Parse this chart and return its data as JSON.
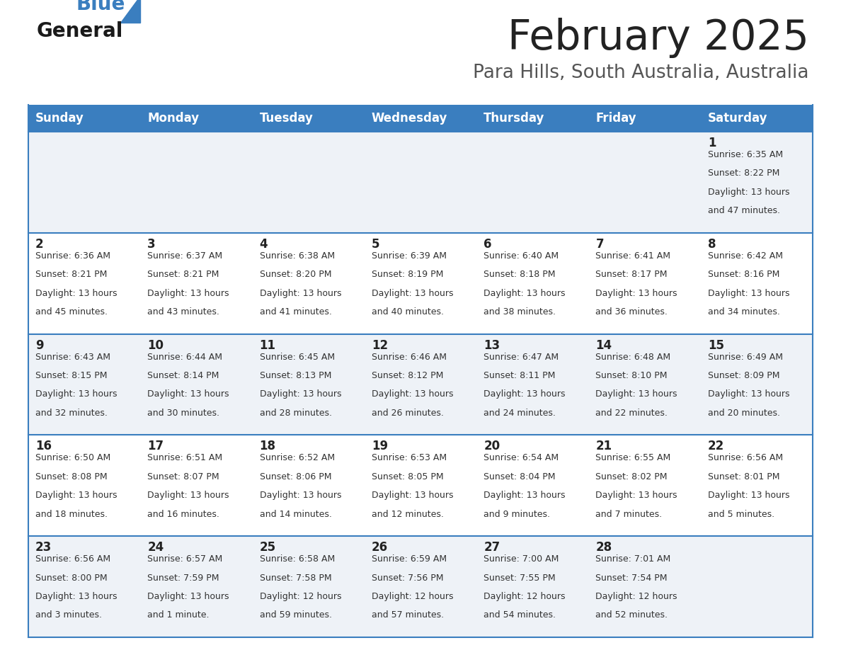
{
  "title": "February 2025",
  "subtitle": "Para Hills, South Australia, Australia",
  "days_of_week": [
    "Sunday",
    "Monday",
    "Tuesday",
    "Wednesday",
    "Thursday",
    "Friday",
    "Saturday"
  ],
  "header_bg": "#3a7ebf",
  "header_text": "#ffffff",
  "row_bg_odd": "#eef2f7",
  "row_bg_even": "#ffffff",
  "cell_border": "#3a7ebf",
  "day_num_color": "#222222",
  "info_color": "#333333",
  "title_color": "#222222",
  "subtitle_color": "#555555",
  "logo_general_color": "#1a1a1a",
  "logo_blue_color": "#3a7ebf",
  "calendar": [
    [
      {
        "day": null,
        "sunrise": null,
        "sunset": null,
        "daylight": null
      },
      {
        "day": null,
        "sunrise": null,
        "sunset": null,
        "daylight": null
      },
      {
        "day": null,
        "sunrise": null,
        "sunset": null,
        "daylight": null
      },
      {
        "day": null,
        "sunrise": null,
        "sunset": null,
        "daylight": null
      },
      {
        "day": null,
        "sunrise": null,
        "sunset": null,
        "daylight": null
      },
      {
        "day": null,
        "sunrise": null,
        "sunset": null,
        "daylight": null
      },
      {
        "day": 1,
        "sunrise": "6:35 AM",
        "sunset": "8:22 PM",
        "daylight": "13 hours and 47 minutes."
      }
    ],
    [
      {
        "day": 2,
        "sunrise": "6:36 AM",
        "sunset": "8:21 PM",
        "daylight": "13 hours and 45 minutes."
      },
      {
        "day": 3,
        "sunrise": "6:37 AM",
        "sunset": "8:21 PM",
        "daylight": "13 hours and 43 minutes."
      },
      {
        "day": 4,
        "sunrise": "6:38 AM",
        "sunset": "8:20 PM",
        "daylight": "13 hours and 41 minutes."
      },
      {
        "day": 5,
        "sunrise": "6:39 AM",
        "sunset": "8:19 PM",
        "daylight": "13 hours and 40 minutes."
      },
      {
        "day": 6,
        "sunrise": "6:40 AM",
        "sunset": "8:18 PM",
        "daylight": "13 hours and 38 minutes."
      },
      {
        "day": 7,
        "sunrise": "6:41 AM",
        "sunset": "8:17 PM",
        "daylight": "13 hours and 36 minutes."
      },
      {
        "day": 8,
        "sunrise": "6:42 AM",
        "sunset": "8:16 PM",
        "daylight": "13 hours and 34 minutes."
      }
    ],
    [
      {
        "day": 9,
        "sunrise": "6:43 AM",
        "sunset": "8:15 PM",
        "daylight": "13 hours and 32 minutes."
      },
      {
        "day": 10,
        "sunrise": "6:44 AM",
        "sunset": "8:14 PM",
        "daylight": "13 hours and 30 minutes."
      },
      {
        "day": 11,
        "sunrise": "6:45 AM",
        "sunset": "8:13 PM",
        "daylight": "13 hours and 28 minutes."
      },
      {
        "day": 12,
        "sunrise": "6:46 AM",
        "sunset": "8:12 PM",
        "daylight": "13 hours and 26 minutes."
      },
      {
        "day": 13,
        "sunrise": "6:47 AM",
        "sunset": "8:11 PM",
        "daylight": "13 hours and 24 minutes."
      },
      {
        "day": 14,
        "sunrise": "6:48 AM",
        "sunset": "8:10 PM",
        "daylight": "13 hours and 22 minutes."
      },
      {
        "day": 15,
        "sunrise": "6:49 AM",
        "sunset": "8:09 PM",
        "daylight": "13 hours and 20 minutes."
      }
    ],
    [
      {
        "day": 16,
        "sunrise": "6:50 AM",
        "sunset": "8:08 PM",
        "daylight": "13 hours and 18 minutes."
      },
      {
        "day": 17,
        "sunrise": "6:51 AM",
        "sunset": "8:07 PM",
        "daylight": "13 hours and 16 minutes."
      },
      {
        "day": 18,
        "sunrise": "6:52 AM",
        "sunset": "8:06 PM",
        "daylight": "13 hours and 14 minutes."
      },
      {
        "day": 19,
        "sunrise": "6:53 AM",
        "sunset": "8:05 PM",
        "daylight": "13 hours and 12 minutes."
      },
      {
        "day": 20,
        "sunrise": "6:54 AM",
        "sunset": "8:04 PM",
        "daylight": "13 hours and 9 minutes."
      },
      {
        "day": 21,
        "sunrise": "6:55 AM",
        "sunset": "8:02 PM",
        "daylight": "13 hours and 7 minutes."
      },
      {
        "day": 22,
        "sunrise": "6:56 AM",
        "sunset": "8:01 PM",
        "daylight": "13 hours and 5 minutes."
      }
    ],
    [
      {
        "day": 23,
        "sunrise": "6:56 AM",
        "sunset": "8:00 PM",
        "daylight": "13 hours and 3 minutes."
      },
      {
        "day": 24,
        "sunrise": "6:57 AM",
        "sunset": "7:59 PM",
        "daylight": "13 hours and 1 minute."
      },
      {
        "day": 25,
        "sunrise": "6:58 AM",
        "sunset": "7:58 PM",
        "daylight": "12 hours and 59 minutes."
      },
      {
        "day": 26,
        "sunrise": "6:59 AM",
        "sunset": "7:56 PM",
        "daylight": "12 hours and 57 minutes."
      },
      {
        "day": 27,
        "sunrise": "7:00 AM",
        "sunset": "7:55 PM",
        "daylight": "12 hours and 54 minutes."
      },
      {
        "day": 28,
        "sunrise": "7:01 AM",
        "sunset": "7:54 PM",
        "daylight": "12 hours and 52 minutes."
      },
      {
        "day": null,
        "sunrise": null,
        "sunset": null,
        "daylight": null
      }
    ]
  ]
}
